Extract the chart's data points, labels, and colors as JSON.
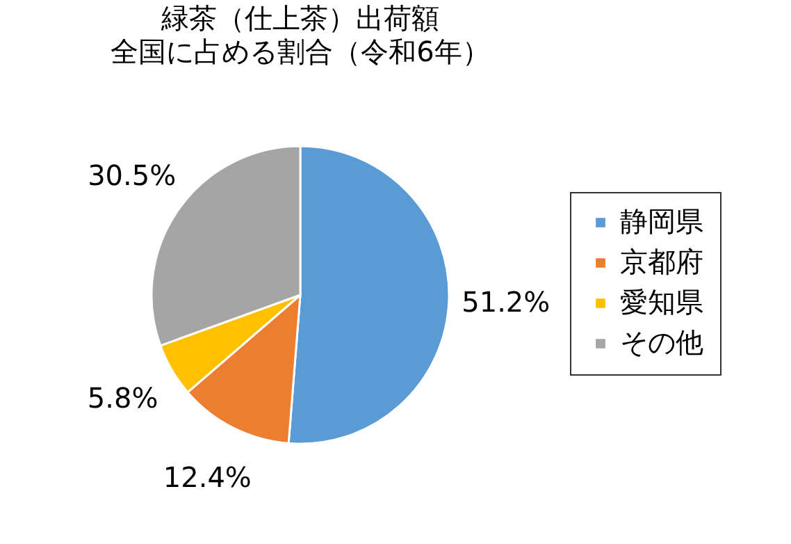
{
  "chart_data": {
    "type": "pie",
    "title": "緑茶（仕上茶）出荷額",
    "subtitle": "全国に占める割合（令和6年）",
    "categories": [
      "静岡県",
      "京都府",
      "愛知県",
      "その他"
    ],
    "values": [
      51.2,
      12.4,
      5.8,
      30.5
    ],
    "colors": [
      "#5b9bd5",
      "#ed7d31",
      "#ffc000",
      "#a5a5a5"
    ],
    "value_labels": [
      "51.2%",
      "12.4%",
      "5.8%",
      "30.5%"
    ],
    "legend": "right"
  }
}
